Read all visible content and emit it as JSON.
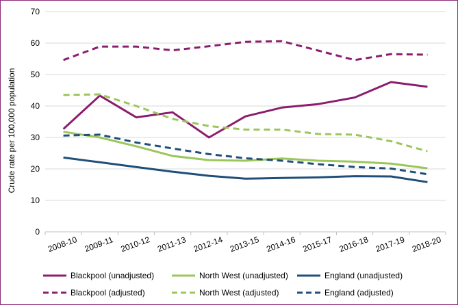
{
  "chart_data": {
    "type": "line",
    "ylabel": "Crude rate per 100,000 population",
    "xlabel": "",
    "title": "",
    "ylim": [
      0,
      70
    ],
    "yticks": [
      0,
      10,
      20,
      30,
      40,
      50,
      60,
      70
    ],
    "grid": "horizontal",
    "legend_position": "bottom",
    "categories": [
      "2008-10",
      "2009-11",
      "2010-12",
      "2011-13",
      "2012-14",
      "2013-15",
      "2014-16",
      "2015-17",
      "2016-18",
      "2017-19",
      "2018-20"
    ],
    "series": [
      {
        "name": "Blackpool (unadjusted)",
        "color": "#8c1d6e",
        "dash": "solid",
        "values": [
          32.7,
          43.3,
          36.4,
          38.0,
          30.0,
          36.7,
          39.5,
          40.6,
          42.7,
          47.6,
          46.1
        ]
      },
      {
        "name": "North West (unadjusted)",
        "color": "#9bc65a",
        "dash": "solid",
        "values": [
          31.8,
          30.0,
          27.2,
          24.1,
          22.8,
          22.6,
          23.3,
          22.6,
          22.3,
          21.7,
          20.2
        ]
      },
      {
        "name": "England (unadjusted)",
        "color": "#1f4e79",
        "dash": "solid",
        "values": [
          23.6,
          22.1,
          20.6,
          19.1,
          17.8,
          16.9,
          17.1,
          17.3,
          17.7,
          17.6,
          15.8
        ]
      },
      {
        "name": "Blackpool (adjusted)",
        "color": "#8c1d6e",
        "dash": "dashed",
        "values": [
          54.6,
          58.9,
          58.9,
          57.7,
          59.0,
          60.4,
          60.6,
          57.6,
          54.6,
          56.5,
          56.3
        ]
      },
      {
        "name": "North West (adjusted)",
        "color": "#9bc65a",
        "dash": "dashed",
        "values": [
          43.5,
          43.7,
          40.0,
          35.9,
          33.6,
          32.5,
          32.5,
          31.1,
          30.9,
          28.8,
          25.6
        ]
      },
      {
        "name": "England (adjusted)",
        "color": "#1f4e79",
        "dash": "dashed",
        "values": [
          30.6,
          30.9,
          28.4,
          26.5,
          24.7,
          23.4,
          22.6,
          21.5,
          20.6,
          20.1,
          18.3
        ]
      }
    ]
  }
}
